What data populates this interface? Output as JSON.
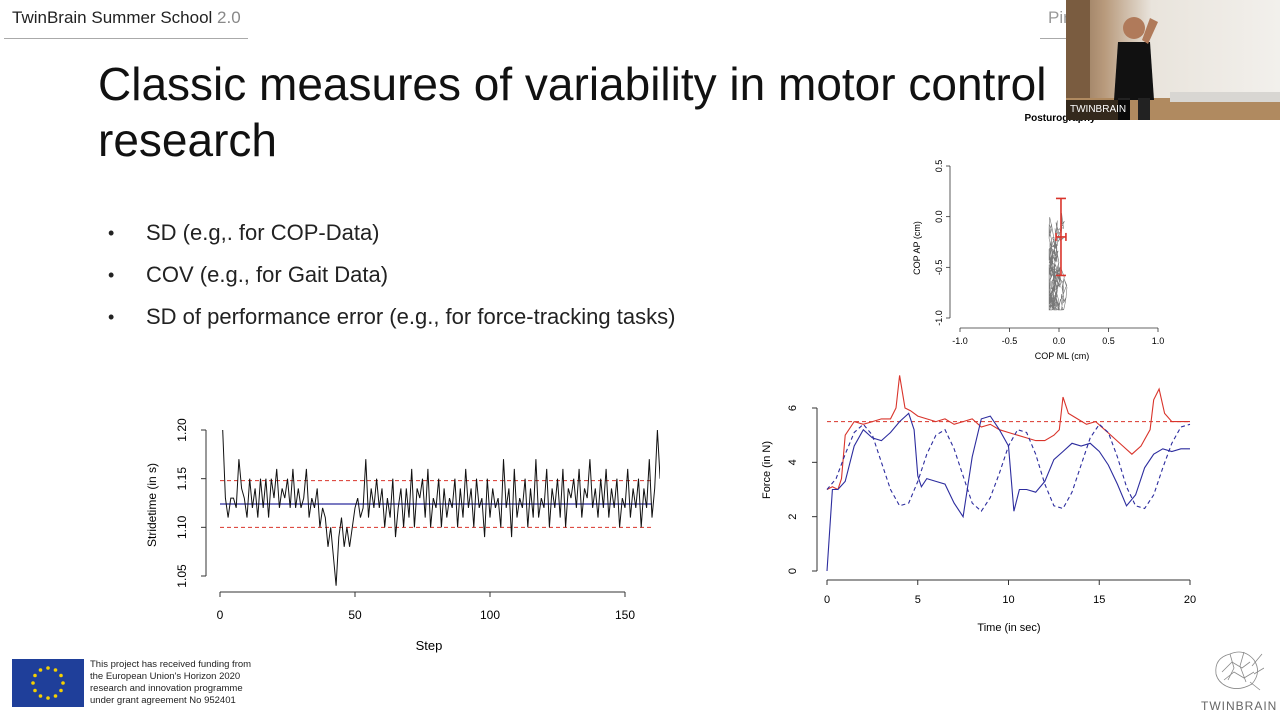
{
  "header": {
    "left_title": "TwinBrain Summer School",
    "left_version": "2.0",
    "right_fragment": "Pir"
  },
  "slide": {
    "title": "Classic measures of variability in motor control research",
    "bullets": [
      "SD (e.g,. for COP-Data)",
      "COV (e.g., for Gait Data)",
      "SD of performance error (e.g., for force-tracking tasks)"
    ]
  },
  "video": {
    "label": "TWINBRAIN"
  },
  "funding": {
    "lines": [
      "This project has received funding from",
      "the European Union's Horizon 2020",
      "research and innovation programme",
      "under grant agreement No 952401"
    ],
    "logo_text": "TWINBRAIN"
  },
  "colors": {
    "red": "#d9342b",
    "blue": "#2c2c9e",
    "text": "#111111"
  },
  "chart_data": [
    {
      "type": "scatter",
      "title": "Posturography",
      "xlabel": "COP ML (cm)",
      "ylabel": "COP AP (cm)",
      "xlim": [
        -1.0,
        1.0
      ],
      "ylim": [
        -1.0,
        0.5
      ],
      "xticks": [
        "-1.0",
        "-0.5",
        "0.0",
        "0.5",
        "1.0"
      ],
      "yticks": [
        "-1.0",
        "-0.5",
        "0.0",
        "0.5"
      ],
      "mean": {
        "x": 0.02,
        "y": -0.2
      },
      "sd": {
        "x": 0.05,
        "y": 0.38
      }
    },
    {
      "type": "line",
      "xlabel": "Step",
      "ylabel": "Stridetime (in s)",
      "xlim": [
        0,
        160
      ],
      "ylim": [
        1.05,
        1.2
      ],
      "xticks": [
        "0",
        "50",
        "100",
        "150"
      ],
      "yticks": [
        "1.05",
        "1.10",
        "1.15",
        "1.20"
      ],
      "mean": 1.124,
      "sd_upper": 1.148,
      "sd_lower": 1.1,
      "series": [
        {
          "values": [
            1.2,
            1.13,
            1.11,
            1.13,
            1.13,
            1.12,
            1.17,
            1.14,
            1.13,
            1.11,
            1.15,
            1.12,
            1.14,
            1.11,
            1.15,
            1.12,
            1.15,
            1.11,
            1.15,
            1.13,
            1.16,
            1.12,
            1.14,
            1.13,
            1.15,
            1.12,
            1.16,
            1.12,
            1.14,
            1.12,
            1.13,
            1.16,
            1.11,
            1.13,
            1.12,
            1.14,
            1.1,
            1.12,
            1.11,
            1.08,
            1.1,
            1.07,
            1.04,
            1.09,
            1.11,
            1.08,
            1.1,
            1.08,
            1.1,
            1.12,
            1.13,
            1.11,
            1.12,
            1.17,
            1.11,
            1.14,
            1.12,
            1.15,
            1.12,
            1.14,
            1.1,
            1.13,
            1.11,
            1.15,
            1.09,
            1.12,
            1.14,
            1.1,
            1.14,
            1.11,
            1.16,
            1.1,
            1.14,
            1.13,
            1.15,
            1.11,
            1.16,
            1.1,
            1.13,
            1.12,
            1.15,
            1.1,
            1.14,
            1.11,
            1.13,
            1.12,
            1.15,
            1.1,
            1.14,
            1.11,
            1.16,
            1.12,
            1.14,
            1.1,
            1.15,
            1.12,
            1.13,
            1.09,
            1.15,
            1.11,
            1.14,
            1.12,
            1.13,
            1.1,
            1.17,
            1.12,
            1.14,
            1.09,
            1.16,
            1.11,
            1.13,
            1.12,
            1.15,
            1.1,
            1.14,
            1.11,
            1.17,
            1.11,
            1.13,
            1.12,
            1.16,
            1.1,
            1.14,
            1.12,
            1.15,
            1.11,
            1.16,
            1.1,
            1.14,
            1.13,
            1.15,
            1.12,
            1.16,
            1.11,
            1.14,
            1.13,
            1.17,
            1.12,
            1.14,
            1.11,
            1.15,
            1.12,
            1.16,
            1.11,
            1.14,
            1.12,
            1.15,
            1.1,
            1.13,
            1.12,
            1.16,
            1.11,
            1.14,
            1.12,
            1.15,
            1.1,
            1.14,
            1.12,
            1.17,
            1.11,
            1.14,
            1.2,
            1.15
          ]
        }
      ]
    },
    {
      "type": "line",
      "xlabel": "Time (in sec)",
      "ylabel": "Force (in N)",
      "xlim": [
        0,
        20
      ],
      "ylim": [
        0,
        6
      ],
      "xticks": [
        "0",
        "5",
        "10",
        "15",
        "20"
      ],
      "yticks": [
        "0",
        "2",
        "4",
        "6"
      ],
      "reference_level": 5.5,
      "series": [
        {
          "color": "red",
          "x": [
            0,
            0.3,
            0.6,
            0.8,
            1.0,
            1.5,
            2,
            2.5,
            3,
            3.5,
            3.8,
            4.0,
            4.3,
            4.6,
            5,
            5.5,
            6,
            6.5,
            7,
            7.5,
            8,
            8.5,
            9,
            9.5,
            10,
            10.5,
            11,
            11.5,
            12,
            12.5,
            12.8,
            13.0,
            13.3,
            13.8,
            14.3,
            14.8,
            15.3,
            15.8,
            16.3,
            16.8,
            17.3,
            17.8,
            18.0,
            18.3,
            18.6,
            19,
            19.5,
            20
          ],
          "values": [
            3.0,
            3.1,
            3.0,
            3.4,
            5.0,
            5.5,
            5.4,
            5.5,
            5.6,
            5.6,
            6.0,
            7.2,
            6.0,
            5.9,
            5.7,
            5.6,
            5.5,
            5.6,
            5.4,
            5.5,
            5.6,
            5.3,
            5.4,
            5.2,
            5.1,
            5.0,
            4.9,
            4.8,
            4.8,
            5.0,
            5.2,
            6.4,
            5.8,
            5.6,
            5.4,
            5.5,
            5.2,
            4.9,
            4.6,
            4.3,
            4.6,
            5.2,
            6.3,
            6.7,
            5.8,
            5.5,
            5.5,
            5.5
          ]
        },
        {
          "color": "blue",
          "x": [
            0,
            0.3,
            0.6,
            1.0,
            1.5,
            2,
            2.5,
            3,
            3.5,
            4,
            4.5,
            4.8,
            5.0,
            5.2,
            5.5,
            6,
            6.5,
            7,
            7.5,
            8,
            8.5,
            9,
            9.5,
            10,
            10.3,
            10.6,
            11,
            11.5,
            12,
            12.5,
            13,
            13.5,
            14,
            14.5,
            15,
            15.5,
            16,
            16.5,
            17,
            17.5,
            18,
            18.5,
            19,
            19.5,
            20
          ],
          "values": [
            0.0,
            3.0,
            3.0,
            3.3,
            4.6,
            5.2,
            4.9,
            4.8,
            5.1,
            5.5,
            5.8,
            5.2,
            3.5,
            3.1,
            3.4,
            3.3,
            3.2,
            2.5,
            2.0,
            4.2,
            5.6,
            5.7,
            5.2,
            4.6,
            2.2,
            3.0,
            3.0,
            2.9,
            3.3,
            4.1,
            4.4,
            4.7,
            4.6,
            4.7,
            4.4,
            3.9,
            3.2,
            2.4,
            2.8,
            3.8,
            4.3,
            4.5,
            4.4,
            4.5,
            4.5
          ]
        },
        {
          "color": "blue-dashed",
          "x": [
            0,
            0.5,
            1,
            1.5,
            2,
            2.5,
            3,
            3.5,
            4,
            4.5,
            5,
            5.5,
            6,
            6.5,
            7,
            7.5,
            8,
            8.5,
            9,
            9.5,
            10,
            10.5,
            11,
            11.5,
            12,
            12.5,
            13,
            13.5,
            14,
            14.5,
            15,
            15.5,
            16,
            16.5,
            17,
            17.5,
            18,
            18.5,
            19,
            19.5,
            20
          ],
          "values": [
            3.0,
            3.4,
            4.3,
            5.1,
            5.4,
            5.0,
            4.0,
            3.0,
            2.4,
            2.5,
            3.3,
            4.3,
            5.0,
            5.2,
            4.5,
            3.5,
            2.5,
            2.2,
            2.7,
            3.6,
            4.6,
            5.2,
            5.1,
            4.3,
            3.2,
            2.4,
            2.3,
            2.9,
            3.9,
            4.9,
            5.4,
            5.1,
            4.2,
            3.1,
            2.4,
            2.3,
            2.8,
            3.8,
            4.7,
            5.3,
            5.4
          ]
        }
      ]
    }
  ]
}
